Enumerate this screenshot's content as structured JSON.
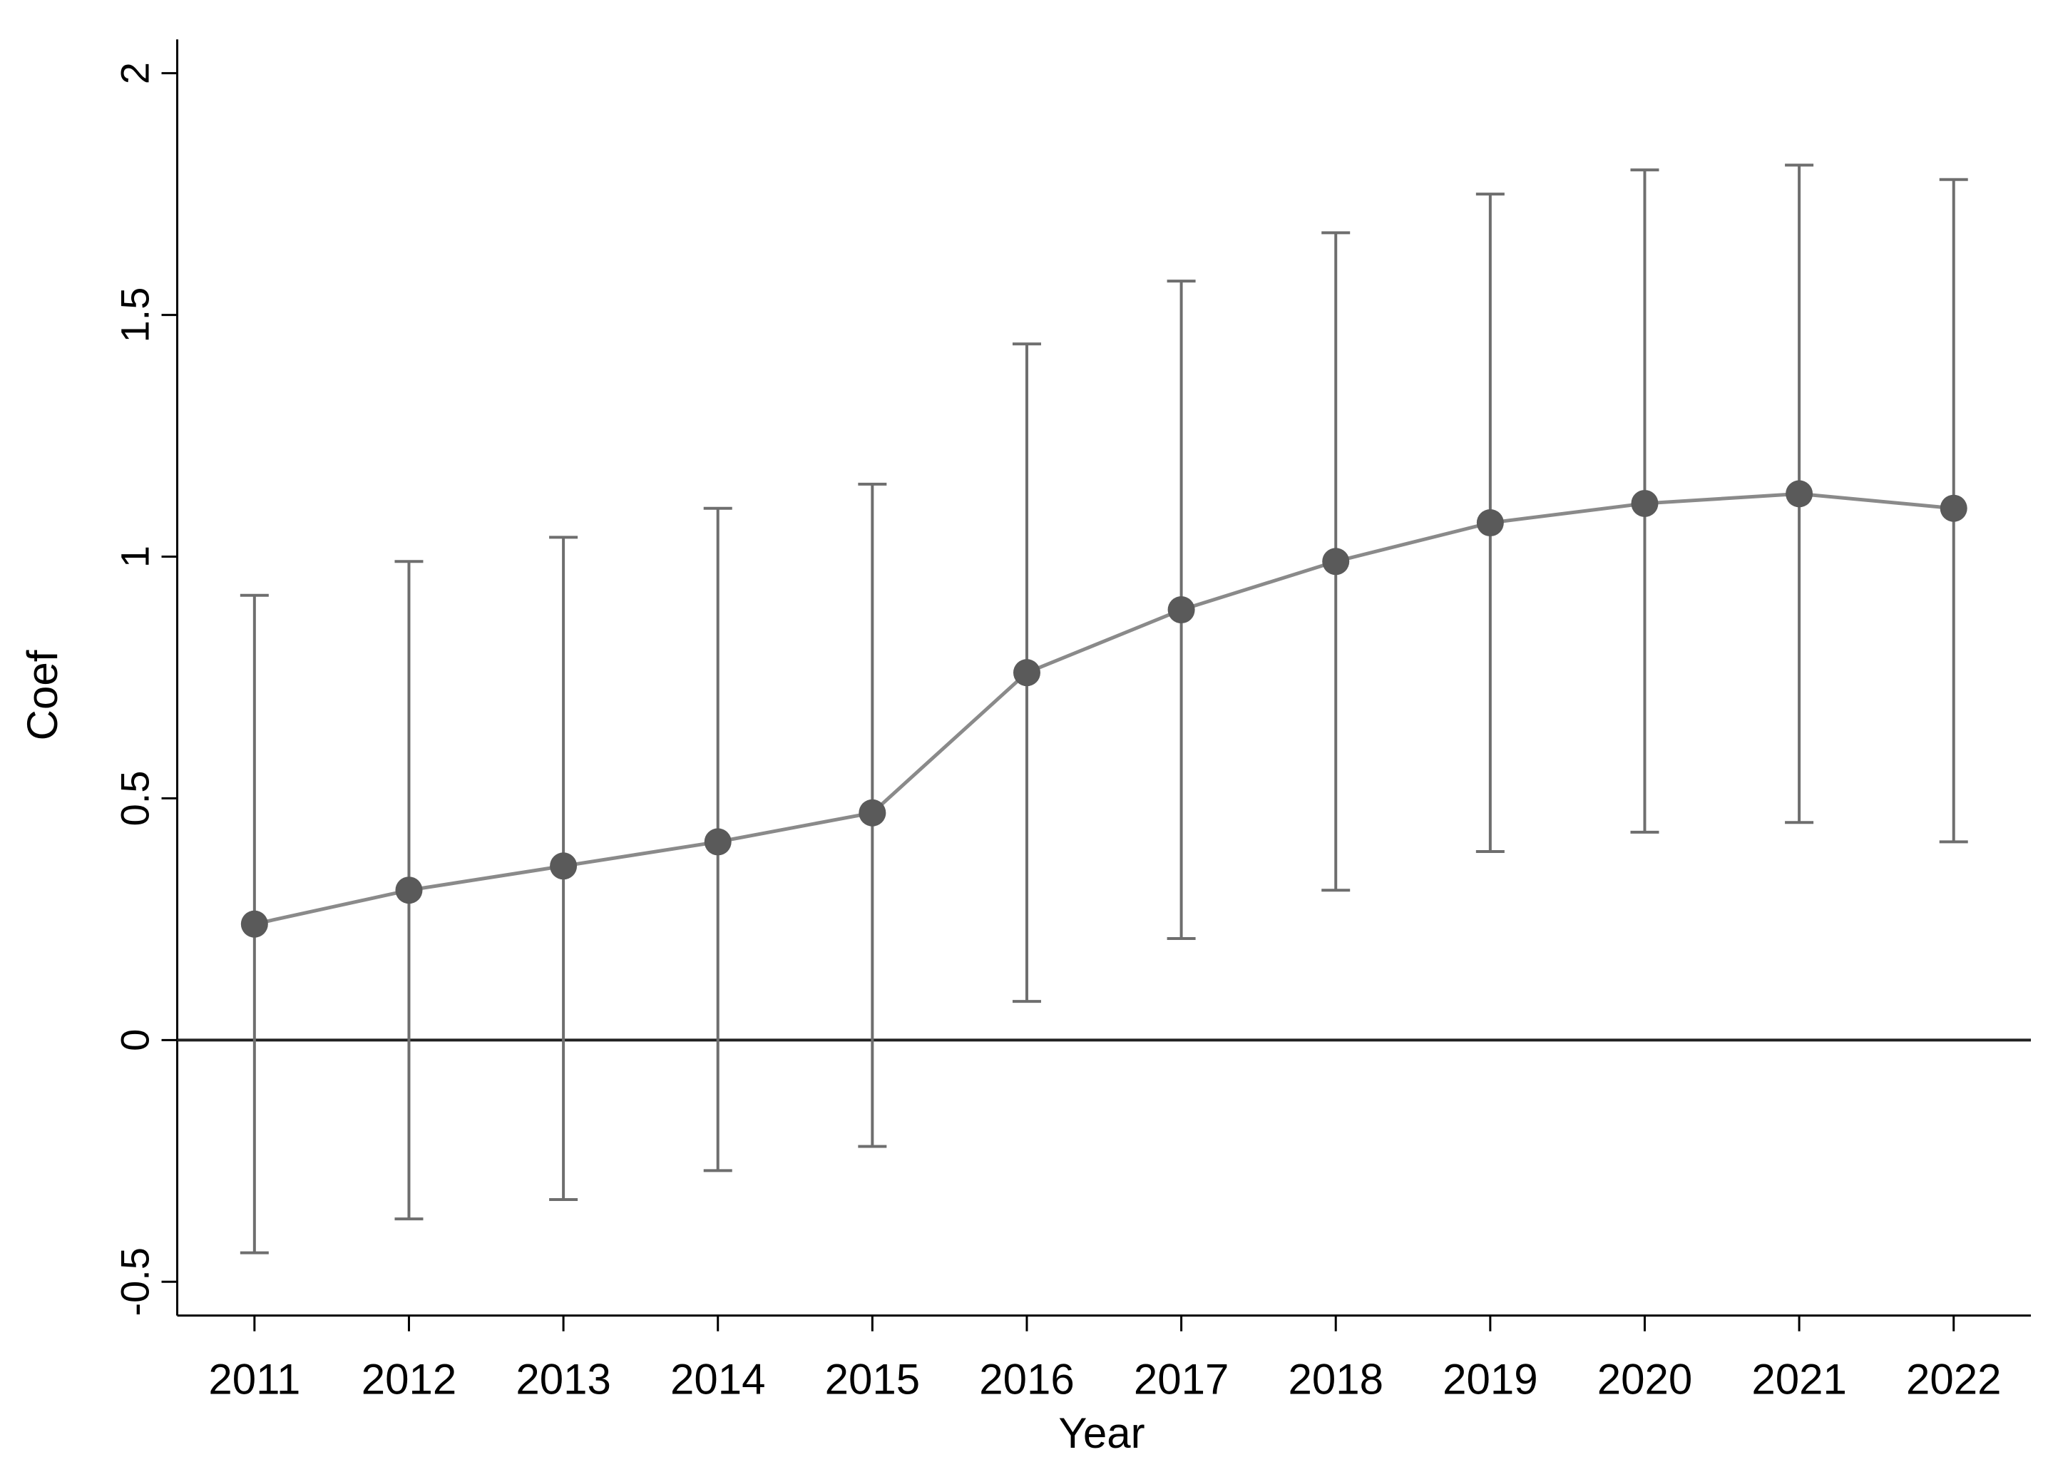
{
  "chart_data": {
    "type": "line",
    "x_label": "Year",
    "y_label": "Coef",
    "categories": [
      "2011",
      "2012",
      "2013",
      "2014",
      "2015",
      "2016",
      "2017",
      "2018",
      "2019",
      "2020",
      "2021",
      "2022"
    ],
    "series": [
      {
        "name": "Coef",
        "color": "#5a5a5a",
        "values": [
          0.24,
          0.31,
          0.36,
          0.41,
          0.47,
          0.76,
          0.89,
          0.99,
          1.07,
          1.11,
          1.13,
          1.1
        ],
        "ci_low": [
          -0.44,
          -0.37,
          -0.33,
          -0.27,
          -0.22,
          0.08,
          0.21,
          0.31,
          0.39,
          0.43,
          0.45,
          0.41
        ],
        "ci_high": [
          0.92,
          0.99,
          1.04,
          1.1,
          1.15,
          1.44,
          1.57,
          1.67,
          1.75,
          1.8,
          1.81,
          1.78
        ]
      }
    ],
    "ylim": [
      -0.57,
      2.07
    ],
    "yticks": [
      -0.5,
      0,
      0.5,
      1,
      1.5,
      2
    ],
    "reference_line": 0
  }
}
